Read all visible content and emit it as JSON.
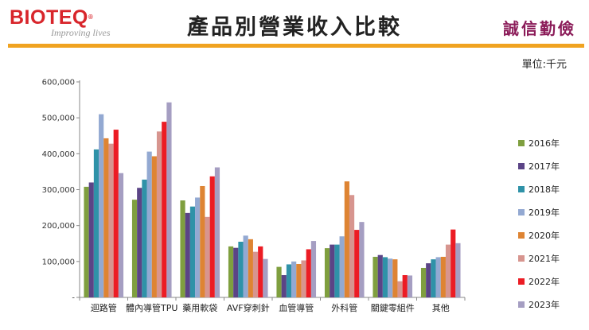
{
  "header": {
    "logo_text": "BIOTEQ",
    "logo_mark": "®",
    "tagline": "Improving lives",
    "title": "產品別營業收入比較",
    "motto": "誠信勤儉",
    "unit_label": "單位:千元"
  },
  "colors": {
    "accent_bar": "#f0a321",
    "logo": "#d8252b",
    "motto": "#8b1c59"
  },
  "chart_data": {
    "type": "bar",
    "title": "產品別營業收入比較",
    "ylabel": "單位:千元",
    "xlabel": "",
    "ylim": [
      0,
      600000
    ],
    "yticks": [
      "-",
      "100,000",
      "200,000",
      "300,000",
      "400,000",
      "500,000",
      "600,000"
    ],
    "grid": false,
    "legend_position": "right",
    "categories": [
      "迴路管",
      "體內導管TPU",
      "藥用軟袋",
      "AVF穿刺針",
      "血管導管",
      "外科管",
      "關鍵零組件",
      "其他"
    ],
    "series": [
      {
        "name": "2016年",
        "color": "#7f9f3f",
        "values": [
          308000,
          272000,
          270000,
          142000,
          85000,
          137000,
          113000,
          82000
        ]
      },
      {
        "name": "2017年",
        "color": "#5b4486",
        "values": [
          320000,
          305000,
          235000,
          138000,
          62000,
          147000,
          118000,
          95000
        ]
      },
      {
        "name": "2018年",
        "color": "#2f92a8",
        "values": [
          412000,
          328000,
          253000,
          155000,
          92000,
          147000,
          112000,
          106000
        ]
      },
      {
        "name": "2019年",
        "color": "#93a9d2",
        "values": [
          510000,
          406000,
          278000,
          172000,
          100000,
          170000,
          108000,
          112000
        ]
      },
      {
        "name": "2020年",
        "color": "#de8433",
        "values": [
          443000,
          393000,
          310000,
          162000,
          93000,
          323000,
          106000,
          113000
        ]
      },
      {
        "name": "2021年",
        "color": "#d7958f",
        "values": [
          428000,
          462000,
          224000,
          127000,
          103000,
          285000,
          45000,
          147000
        ]
      },
      {
        "name": "2022年",
        "color": "#ec1c24",
        "values": [
          467000,
          489000,
          337000,
          142000,
          134000,
          188000,
          62000,
          189000
        ]
      },
      {
        "name": "2023年",
        "color": "#a59ec2",
        "values": [
          346000,
          543000,
          362000,
          107000,
          157000,
          210000,
          61000,
          151000
        ]
      }
    ]
  }
}
